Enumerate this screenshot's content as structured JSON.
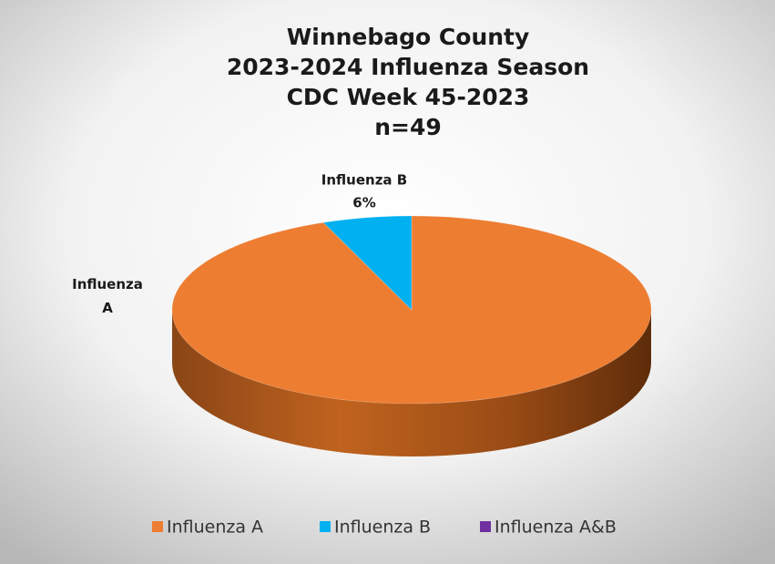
{
  "chart_data": {
    "type": "pie3d",
    "title": [
      "Winnebago County",
      "2023-2024 Influenza Season",
      "CDC Week 45-2023",
      "n=49"
    ],
    "categories": [
      "Influenza A",
      "Influenza B",
      "Influenza A&B"
    ],
    "values": [
      94,
      6,
      0
    ],
    "value_labels": [
      null,
      "6%",
      null
    ],
    "colors": [
      "#ed7d31",
      "#00b0f0",
      "#7030a0"
    ],
    "legend": "bottom"
  }
}
